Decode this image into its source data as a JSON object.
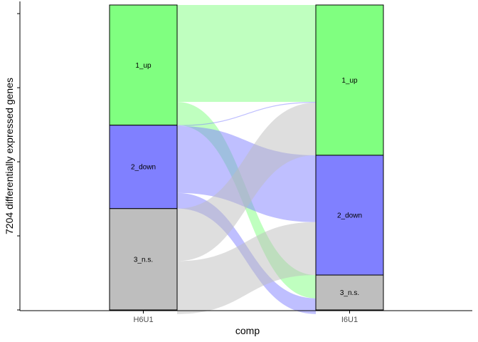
{
  "chart_data": {
    "type": "alluvial",
    "xlabel": "comp",
    "ylabel": "7204 differentially expressed genes",
    "axes": [
      "H6U1",
      "I6U1"
    ],
    "total": 7204,
    "legend": "none",
    "grid": false,
    "y_ticks": [
      0,
      1750,
      3500,
      5250,
      7000
    ],
    "categories": [
      "1_up",
      "2_down",
      "3_n.s."
    ],
    "colors": {
      "1_up": "#80ff80",
      "2_down": "#8080ff",
      "3_n.s.": "#bebebe"
    },
    "strata": {
      "H6U1": [
        {
          "label": "1_up",
          "value": 2840
        },
        {
          "label": "2_down",
          "value": 1970
        },
        {
          "label": "3_n.s.",
          "value": 2394
        }
      ],
      "I6U1": [
        {
          "label": "1_up",
          "value": 3550
        },
        {
          "label": "2_down",
          "value": 2830
        },
        {
          "label": "3_n.s.",
          "value": 824
        }
      ]
    },
    "flows": [
      {
        "from": "1_up",
        "to": "1_up",
        "value": 2290
      },
      {
        "from": "1_up",
        "to": "3_n.s.",
        "value": 550
      },
      {
        "from": "2_down",
        "to": "1_up",
        "value": 20
      },
      {
        "from": "2_down",
        "to": "2_down",
        "value": 1580
      },
      {
        "from": "2_down",
        "to": "3_n.s.",
        "value": 370
      },
      {
        "from": "3_n.s.",
        "to": "1_up",
        "value": 1240
      },
      {
        "from": "3_n.s.",
        "to": "2_down",
        "value": 1250
      },
      {
        "from": "3_n.s.",
        "to": "3_n.s.",
        "value": -96
      }
    ]
  }
}
